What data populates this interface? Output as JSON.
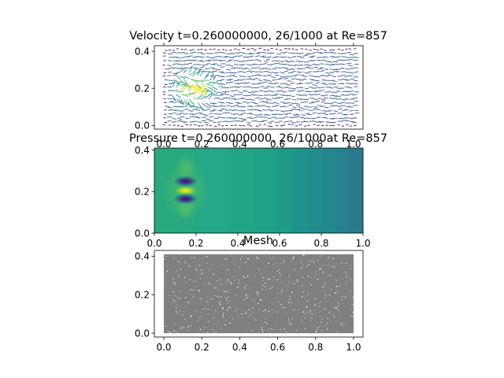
{
  "chart_data": [
    {
      "type": "quiver",
      "title": "Velocity t=0.260000000, 26/1000 at Re=857",
      "xlabel": "",
      "ylabel": "",
      "xlim": [
        -0.05,
        1.05
      ],
      "ylim": [
        -0.02,
        0.43
      ],
      "x_ticks": [
        "0.0",
        "0.2",
        "0.4",
        "0.6",
        "0.8",
        "1.0"
      ],
      "x_tick_values": [
        0.0,
        0.2,
        0.4,
        0.6,
        0.8,
        1.0
      ],
      "x_tick_position": "top",
      "y_ticks": [
        "0.0",
        "0.2",
        "0.4"
      ],
      "y_tick_values": [
        0.0,
        0.2,
        0.4
      ],
      "grid": false,
      "colormap": "viridis",
      "disturbance_center": [
        0.15,
        0.2
      ],
      "arrow_region": {
        "x": [
          0.0,
          1.0
        ],
        "y": [
          0.0,
          0.41
        ]
      }
    },
    {
      "type": "contour",
      "title": "Pressure t=0.260000000, 26/1000at Re=857",
      "xlabel": "",
      "ylabel": "",
      "xlim": [
        0.0,
        1.0
      ],
      "ylim": [
        0.0,
        0.41
      ],
      "x_ticks": [
        "0.0",
        "0.2",
        "0.4",
        "0.6",
        "0.8",
        "1.0"
      ],
      "x_tick_values": [
        0.0,
        0.2,
        0.4,
        0.6,
        0.8,
        1.0
      ],
      "y_ticks": [
        "0.0",
        "0.2",
        "0.4"
      ],
      "y_tick_values": [
        0.0,
        0.2,
        0.4
      ],
      "grid": false,
      "colormap": "viridis",
      "features": [
        {
          "kind": "low",
          "x": 0.15,
          "y": 0.25
        },
        {
          "kind": "high",
          "x": 0.15,
          "y": 0.205
        },
        {
          "kind": "low",
          "x": 0.15,
          "y": 0.165
        }
      ]
    },
    {
      "type": "mesh",
      "title": "Mesh",
      "xlabel": "",
      "ylabel": "",
      "xlim": [
        -0.05,
        1.05
      ],
      "ylim": [
        -0.02,
        0.43
      ],
      "x_ticks": [
        "0.0",
        "0.2",
        "0.4",
        "0.6",
        "0.8",
        "1.0"
      ],
      "x_tick_values": [
        0.0,
        0.2,
        0.4,
        0.6,
        0.8,
        1.0
      ],
      "y_ticks": [
        "0.0",
        "0.2",
        "0.4"
      ],
      "y_tick_values": [
        0.0,
        0.2,
        0.4
      ],
      "grid": false,
      "mesh_color": "#808080",
      "domain": {
        "x": [
          0.0,
          1.0
        ],
        "y": [
          0.0,
          0.41
        ]
      }
    }
  ]
}
